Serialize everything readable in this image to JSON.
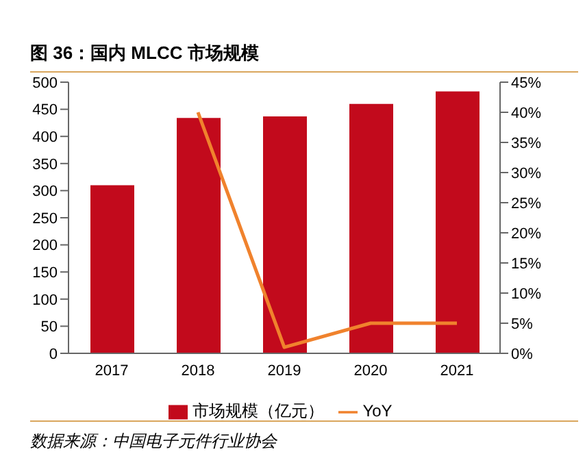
{
  "chart_data": {
    "type": "bar",
    "title": "图 36：国内 MLCC 市场规模",
    "categories": [
      "2017",
      "2018",
      "2019",
      "2020",
      "2021"
    ],
    "series": [
      {
        "name": "市场规模（亿元）",
        "color": "#c20a1c",
        "values": [
          310,
          434,
          437,
          460,
          483
        ]
      },
      {
        "name": "YoY",
        "type": "line",
        "axis": "y2",
        "color": "#f0822d",
        "values": [
          null,
          40,
          1,
          5,
          5
        ]
      }
    ],
    "ylim": [
      0,
      500
    ],
    "yticks": [
      0,
      50,
      100,
      150,
      200,
      250,
      300,
      350,
      400,
      450,
      500
    ],
    "y2lim": [
      0,
      45
    ],
    "y2ticks": [
      {
        "value": 0,
        "label": "0%"
      },
      {
        "value": 5,
        "label": "5%"
      },
      {
        "value": 10,
        "label": "10%"
      },
      {
        "value": 15,
        "label": "15%"
      },
      {
        "value": 20,
        "label": "20%"
      },
      {
        "value": 25,
        "label": "25%"
      },
      {
        "value": 30,
        "label": "30%"
      },
      {
        "value": 35,
        "label": "35%"
      },
      {
        "value": 40,
        "label": "40%"
      },
      {
        "value": 45,
        "label": "45%"
      }
    ],
    "legend": "bottom",
    "grid": false,
    "marker": "none",
    "annotations": [
      "数据来源：中国电子元件行业协会"
    ]
  }
}
